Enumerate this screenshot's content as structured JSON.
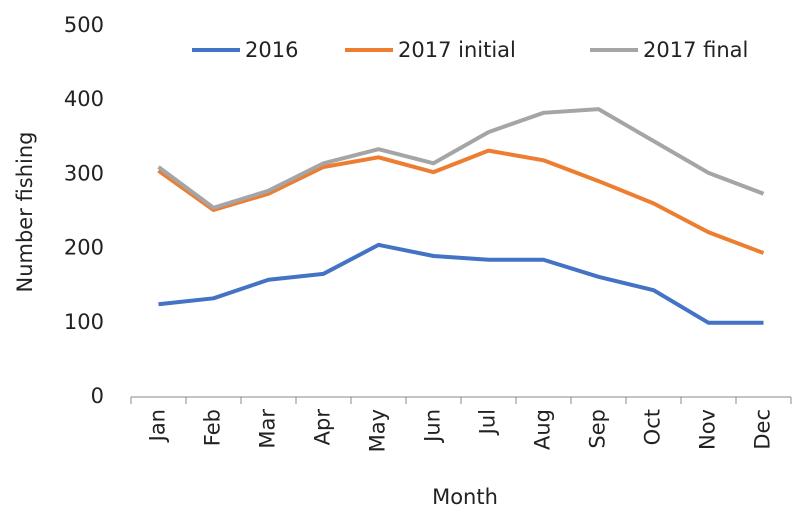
{
  "chart_data": {
    "type": "line",
    "xlabel": "Month",
    "ylabel": "Number fishing",
    "categories": [
      "Jan",
      "Feb",
      "Mar",
      "Apr",
      "May",
      "Jun",
      "Jul",
      "Aug",
      "Sep",
      "Oct",
      "Nov",
      "Dec"
    ],
    "series": [
      {
        "name": "2016",
        "color": "#4472c4",
        "values": [
          125,
          133,
          158,
          166,
          205,
          190,
          185,
          185,
          162,
          144,
          100,
          100
        ]
      },
      {
        "name": "2017 initial",
        "color": "#ed7d31",
        "values": [
          305,
          252,
          274,
          310,
          323,
          303,
          332,
          319,
          291,
          261,
          222,
          194
        ]
      },
      {
        "name": "2017 final",
        "color": "#a5a5a5",
        "values": [
          310,
          255,
          278,
          315,
          334,
          315,
          357,
          383,
          388,
          345,
          302,
          274
        ]
      }
    ],
    "ylim": [
      0,
      500
    ],
    "yticks": [
      0,
      100,
      200,
      300,
      400,
      500
    ],
    "grid": false,
    "legend": "top"
  }
}
